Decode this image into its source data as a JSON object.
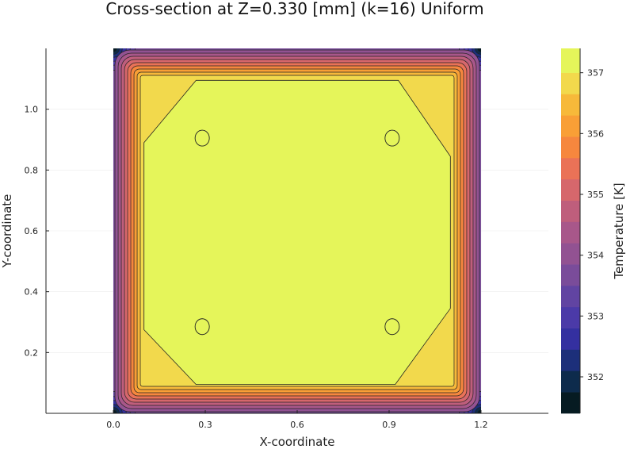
{
  "chart_data": {
    "type": "heatmap",
    "subtype": "filled-contour",
    "title": "Cross-section at Z=0.330 [mm] (k=16) Uniform",
    "xlabel": "X-coordinate",
    "ylabel": "Y-coordinate",
    "colorbar_label": "Temperature [K]",
    "xlim": [
      -0.22,
      1.42
    ],
    "ylim": [
      0.0,
      1.2
    ],
    "domain": {
      "x": [
        0.0,
        1.2
      ],
      "y": [
        0.0,
        1.2
      ]
    },
    "x_ticks": [
      {
        "value": 0.0,
        "label": "0.0"
      },
      {
        "value": 0.3,
        "label": "0.3"
      },
      {
        "value": 0.6,
        "label": "0.6"
      },
      {
        "value": 0.9,
        "label": "0.9"
      },
      {
        "value": 1.2,
        "label": "1.2"
      }
    ],
    "y_ticks": [
      {
        "value": 0.2,
        "label": "0.2"
      },
      {
        "value": 0.4,
        "label": "0.4"
      },
      {
        "value": 0.6,
        "label": "0.6"
      },
      {
        "value": 0.8,
        "label": "0.8"
      },
      {
        "value": 1.0,
        "label": "1.0"
      }
    ],
    "colorbar": {
      "range": [
        351.4,
        357.4
      ],
      "ticks": [
        {
          "value": 352,
          "label": "352"
        },
        {
          "value": 353,
          "label": "353"
        },
        {
          "value": 354,
          "label": "354"
        },
        {
          "value": 355,
          "label": "355"
        },
        {
          "value": 356,
          "label": "356"
        },
        {
          "value": 357,
          "label": "357"
        }
      ],
      "levels": [
        {
          "min": 351.4,
          "max": 351.75,
          "color": "#061b22"
        },
        {
          "min": 351.75,
          "max": 352.1,
          "color": "#0d2b4c"
        },
        {
          "min": 352.1,
          "max": 352.45,
          "color": "#1c2f7a"
        },
        {
          "min": 352.45,
          "max": 352.8,
          "color": "#3430a0"
        },
        {
          "min": 352.8,
          "max": 353.15,
          "color": "#4b3aa8"
        },
        {
          "min": 353.15,
          "max": 353.5,
          "color": "#6144a2"
        },
        {
          "min": 353.5,
          "max": 353.85,
          "color": "#7a4c9a"
        },
        {
          "min": 353.85,
          "max": 354.2,
          "color": "#925292"
        },
        {
          "min": 354.2,
          "max": 354.55,
          "color": "#a8578a"
        },
        {
          "min": 354.55,
          "max": 354.9,
          "color": "#bf5e7c"
        },
        {
          "min": 354.9,
          "max": 355.25,
          "color": "#d6676c"
        },
        {
          "min": 355.25,
          "max": 355.6,
          "color": "#ea7257"
        },
        {
          "min": 355.6,
          "max": 355.95,
          "color": "#f6873e"
        },
        {
          "min": 355.95,
          "max": 356.3,
          "color": "#f99f36"
        },
        {
          "min": 356.3,
          "max": 356.65,
          "color": "#f7b93a"
        },
        {
          "min": 356.65,
          "max": 357.0,
          "color": "#f2d94c"
        },
        {
          "min": 357.0,
          "max": 357.4,
          "color": "#e5f55a"
        }
      ]
    },
    "regions": [
      {
        "name": "hot-plateau",
        "value": 357.2,
        "color": "#e5f55a"
      },
      {
        "name": "warm-band",
        "value": 356.8,
        "color": "#f2d94c"
      }
    ],
    "hot_spots": [
      {
        "x": 0.29,
        "y": 0.905
      },
      {
        "x": 0.91,
        "y": 0.905
      },
      {
        "x": 0.29,
        "y": 0.285
      },
      {
        "x": 0.91,
        "y": 0.285
      }
    ],
    "grid": true,
    "legend": "colorbar-right"
  }
}
